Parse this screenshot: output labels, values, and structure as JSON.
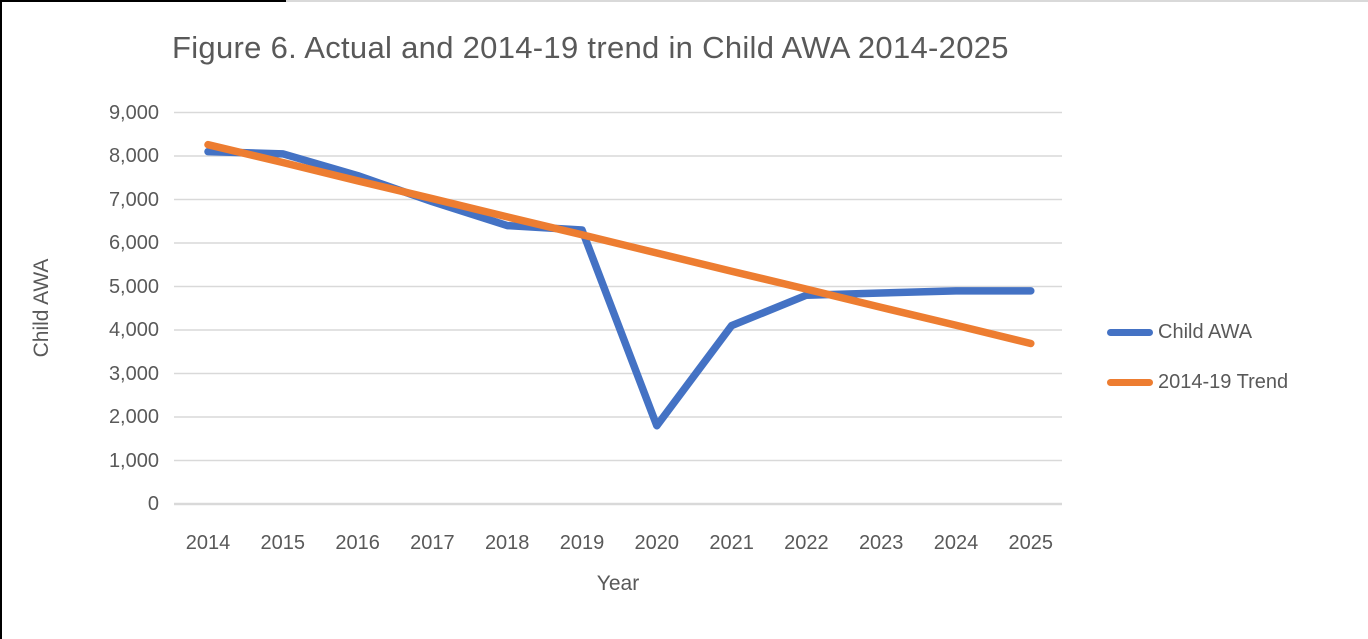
{
  "chart_data": {
    "type": "line",
    "title": "Figure 6. Actual and 2014-19 trend in Child AWA 2014-2025",
    "xlabel": "Year",
    "ylabel": "Child AWA",
    "categories": [
      "2014",
      "2015",
      "2016",
      "2017",
      "2018",
      "2019",
      "2020",
      "2021",
      "2022",
      "2023",
      "2024",
      "2025"
    ],
    "series": [
      {
        "name": "Child AWA",
        "color": "#4472C4",
        "values": [
          8100,
          8050,
          7550,
          6950,
          6400,
          6300,
          1800,
          4100,
          4800,
          4850,
          4900,
          4900
        ]
      },
      {
        "name": "2014-19 Trend",
        "color": "#ED7D31",
        "values": [
          8260,
          7850,
          7430,
          7020,
          6600,
          6190,
          5770,
          5350,
          4940,
          4520,
          4110,
          3690
        ]
      }
    ],
    "ylim": [
      0,
      9000
    ],
    "y_tick_values": [
      0,
      1000,
      2000,
      3000,
      4000,
      5000,
      6000,
      7000,
      8000,
      9000
    ],
    "y_tick_labels": [
      "0",
      "1,000",
      "2,000",
      "3,000",
      "4,000",
      "5,000",
      "6,000",
      "7,000",
      "8,000",
      "9,000"
    ],
    "grid": "horizontal",
    "gridline_color": "#D9D9D9",
    "text_color": "#595959",
    "legend_position": "right"
  }
}
